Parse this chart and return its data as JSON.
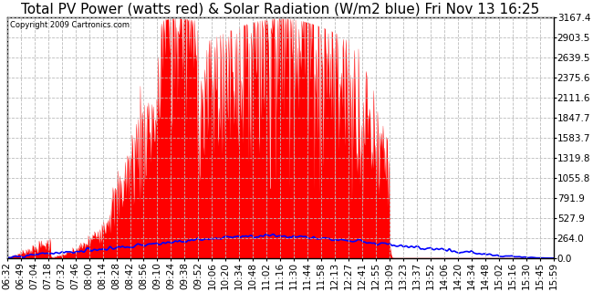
{
  "title": "Total PV Power (watts red) & Solar Radiation (W/m2 blue) Fri Nov 13 16:25",
  "copyright_text": "Copyright 2009 Cartronics.com",
  "ymax": 3167.4,
  "yticks": [
    0.0,
    264.0,
    527.9,
    791.9,
    1055.8,
    1319.8,
    1583.7,
    1847.7,
    2111.6,
    2375.6,
    2639.5,
    2903.5,
    3167.4
  ],
  "background_color": "#ffffff",
  "plot_bg_color": "#ffffff",
  "grid_color": "#aaaaaa",
  "red_color": "#ff0000",
  "blue_color": "#0000ff",
  "title_fontsize": 11,
  "tick_fontsize": 7.5,
  "x_tick_labels": [
    "06:32",
    "06:49",
    "07:04",
    "07:18",
    "07:32",
    "07:46",
    "08:00",
    "08:14",
    "08:28",
    "08:42",
    "08:56",
    "09:10",
    "09:24",
    "09:38",
    "09:52",
    "10:06",
    "10:20",
    "10:34",
    "10:48",
    "11:02",
    "11:16",
    "11:30",
    "11:44",
    "11:58",
    "12:13",
    "12:27",
    "12:41",
    "12:55",
    "13:09",
    "13:23",
    "13:37",
    "13:52",
    "14:06",
    "14:20",
    "14:34",
    "14:48",
    "15:02",
    "15:16",
    "15:30",
    "15:45",
    "15:59"
  ]
}
